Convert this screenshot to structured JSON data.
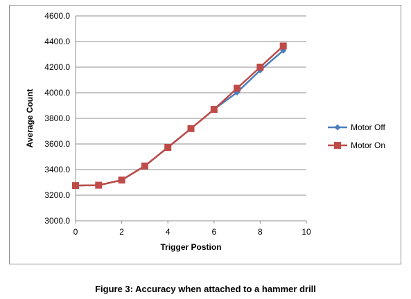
{
  "chart_data": {
    "type": "line",
    "title": "",
    "xlabel": "Trigger Postion",
    "ylabel": "Average Count",
    "xlim": [
      0,
      10
    ],
    "ylim": [
      3000,
      4600
    ],
    "x_ticks": [
      "0",
      "2",
      "4",
      "6",
      "8",
      "10"
    ],
    "y_ticks": [
      "3000.0",
      "3200.0",
      "3400.0",
      "3600.0",
      "3800.0",
      "4000.0",
      "4200.0",
      "4400.0",
      "4600.0"
    ],
    "grid": "horizontal",
    "legend_position": "right",
    "x": [
      0,
      1,
      2,
      3,
      4,
      5,
      6,
      7,
      8,
      9
    ],
    "series": [
      {
        "name": "Motor Off",
        "color": "#4a7ebb",
        "marker": "diamond",
        "values": [
          3275,
          3278,
          3318,
          3428,
          3573,
          3720,
          3870,
          4003,
          4175,
          4330
        ]
      },
      {
        "name": "Motor On",
        "color": "#be4b48",
        "marker": "square",
        "values": [
          3275,
          3278,
          3318,
          3428,
          3573,
          3720,
          3870,
          4035,
          4200,
          4365
        ]
      }
    ]
  },
  "caption": "Figure 3: Accuracy when attached to a hammer drill"
}
